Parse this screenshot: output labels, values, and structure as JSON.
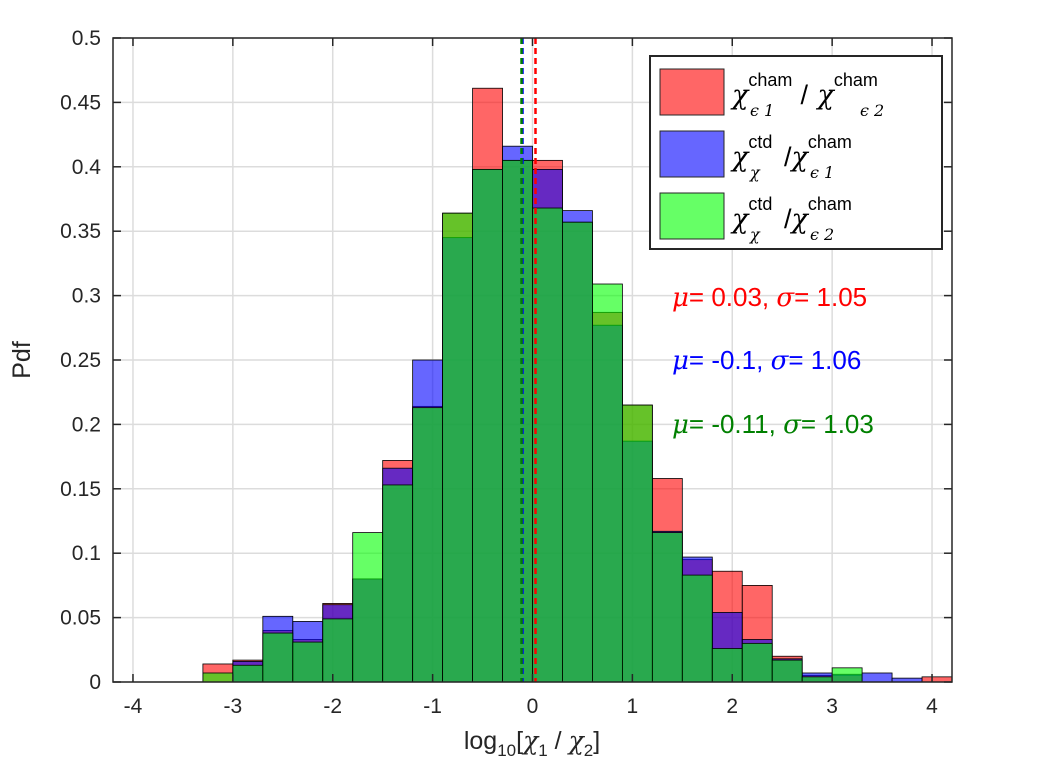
{
  "chart_data": {
    "type": "bar",
    "ylabel": "Pdf",
    "xlabel": {
      "prefix": "log",
      "base": "10",
      "open": "[",
      "var1": "χ",
      "sub1": "1",
      "sep": " / ",
      "var2": "χ",
      "sub2": "2",
      "close": "]"
    },
    "xlim": [
      -4.2,
      4.2
    ],
    "ylim": [
      0,
      0.5
    ],
    "xticks": [
      -4,
      -3,
      -2,
      -1,
      0,
      1,
      2,
      3,
      4
    ],
    "yticks": [
      0,
      0.05,
      0.1,
      0.15,
      0.2,
      0.25,
      0.3,
      0.35,
      0.4,
      0.45,
      0.5
    ],
    "ytick_labels": [
      "0",
      "0.05",
      "0.1",
      "0.15",
      "0.2",
      "0.25",
      "0.3",
      "0.35",
      "0.4",
      "0.45",
      "0.5"
    ],
    "grid": true,
    "legend_position": "top-right",
    "bin_edges": [
      -3.3,
      -3.0,
      -2.7,
      -2.4,
      -2.1,
      -1.8,
      -1.5,
      -1.2,
      -0.9,
      -0.6,
      -0.3,
      0.0,
      0.3,
      0.6,
      0.9,
      1.2,
      1.5,
      1.8,
      2.1,
      2.4,
      2.7,
      3.0,
      3.3,
      3.6,
      3.9,
      4.2
    ],
    "series": [
      {
        "color": "#ff0000",
        "values": [
          0.014,
          0.017,
          0.04,
          0.033,
          0.061,
          0.08,
          0.172,
          0.214,
          0.364,
          0.461,
          0.405,
          0.405,
          0.357,
          0.287,
          0.215,
          0.158,
          0.095,
          0.086,
          0.075,
          0.02,
          0.005,
          0.005,
          0.0,
          0.0,
          0.004
        ],
        "legend": {
          "var1": "χ",
          "sup1": "cham",
          "sub1": "ϵ 1",
          "sep": " / ",
          "var2": "χ",
          "sup2": "cham",
          "sub2": "ϵ 2"
        }
      },
      {
        "color": "#0000ff",
        "values": [
          0.0,
          0.016,
          0.051,
          0.047,
          0.06,
          0.08,
          0.166,
          0.25,
          0.345,
          0.398,
          0.416,
          0.398,
          0.366,
          0.277,
          0.187,
          0.117,
          0.097,
          0.054,
          0.033,
          0.018,
          0.007,
          0.006,
          0.007,
          0.003,
          0.0
        ],
        "legend": {
          "var1": "χ",
          "sup1": "ctd",
          "sub1": "χ",
          "sep": "/",
          "var2": "χ",
          "sup2": "cham",
          "sub2": "ϵ 1"
        }
      },
      {
        "color": "#00ff00",
        "values": [
          0.007,
          0.013,
          0.038,
          0.031,
          0.049,
          0.116,
          0.153,
          0.213,
          0.364,
          0.398,
          0.405,
          0.368,
          0.357,
          0.309,
          0.215,
          0.116,
          0.083,
          0.026,
          0.03,
          0.017,
          0.004,
          0.011,
          0.0,
          0.0,
          0.0
        ],
        "legend": {
          "var1": "χ",
          "sup1": "ctd",
          "sub1": "χ",
          "sep": "/",
          "var2": "χ",
          "sup2": "cham",
          "sub2": "ϵ 2"
        }
      }
    ],
    "mean_lines": [
      {
        "x": 0.03,
        "color": "#ff0000"
      },
      {
        "x": -0.1,
        "color": "#0000ff"
      },
      {
        "x": -0.11,
        "color": "#008000"
      }
    ],
    "annotations": [
      {
        "mu_symbol": "μ",
        "mu_text": "= 0.03, ",
        "sigma_symbol": "σ",
        "sigma_text": "= 1.05",
        "color": "#ff0000"
      },
      {
        "mu_symbol": "μ",
        "mu_text": "= -0.1, ",
        "sigma_symbol": "σ",
        "sigma_text": "= 1.06",
        "color": "#0000ff"
      },
      {
        "mu_symbol": "μ",
        "mu_text": "= -0.11, ",
        "sigma_symbol": "σ",
        "sigma_text": "= 1.03",
        "color": "#008000"
      }
    ]
  }
}
